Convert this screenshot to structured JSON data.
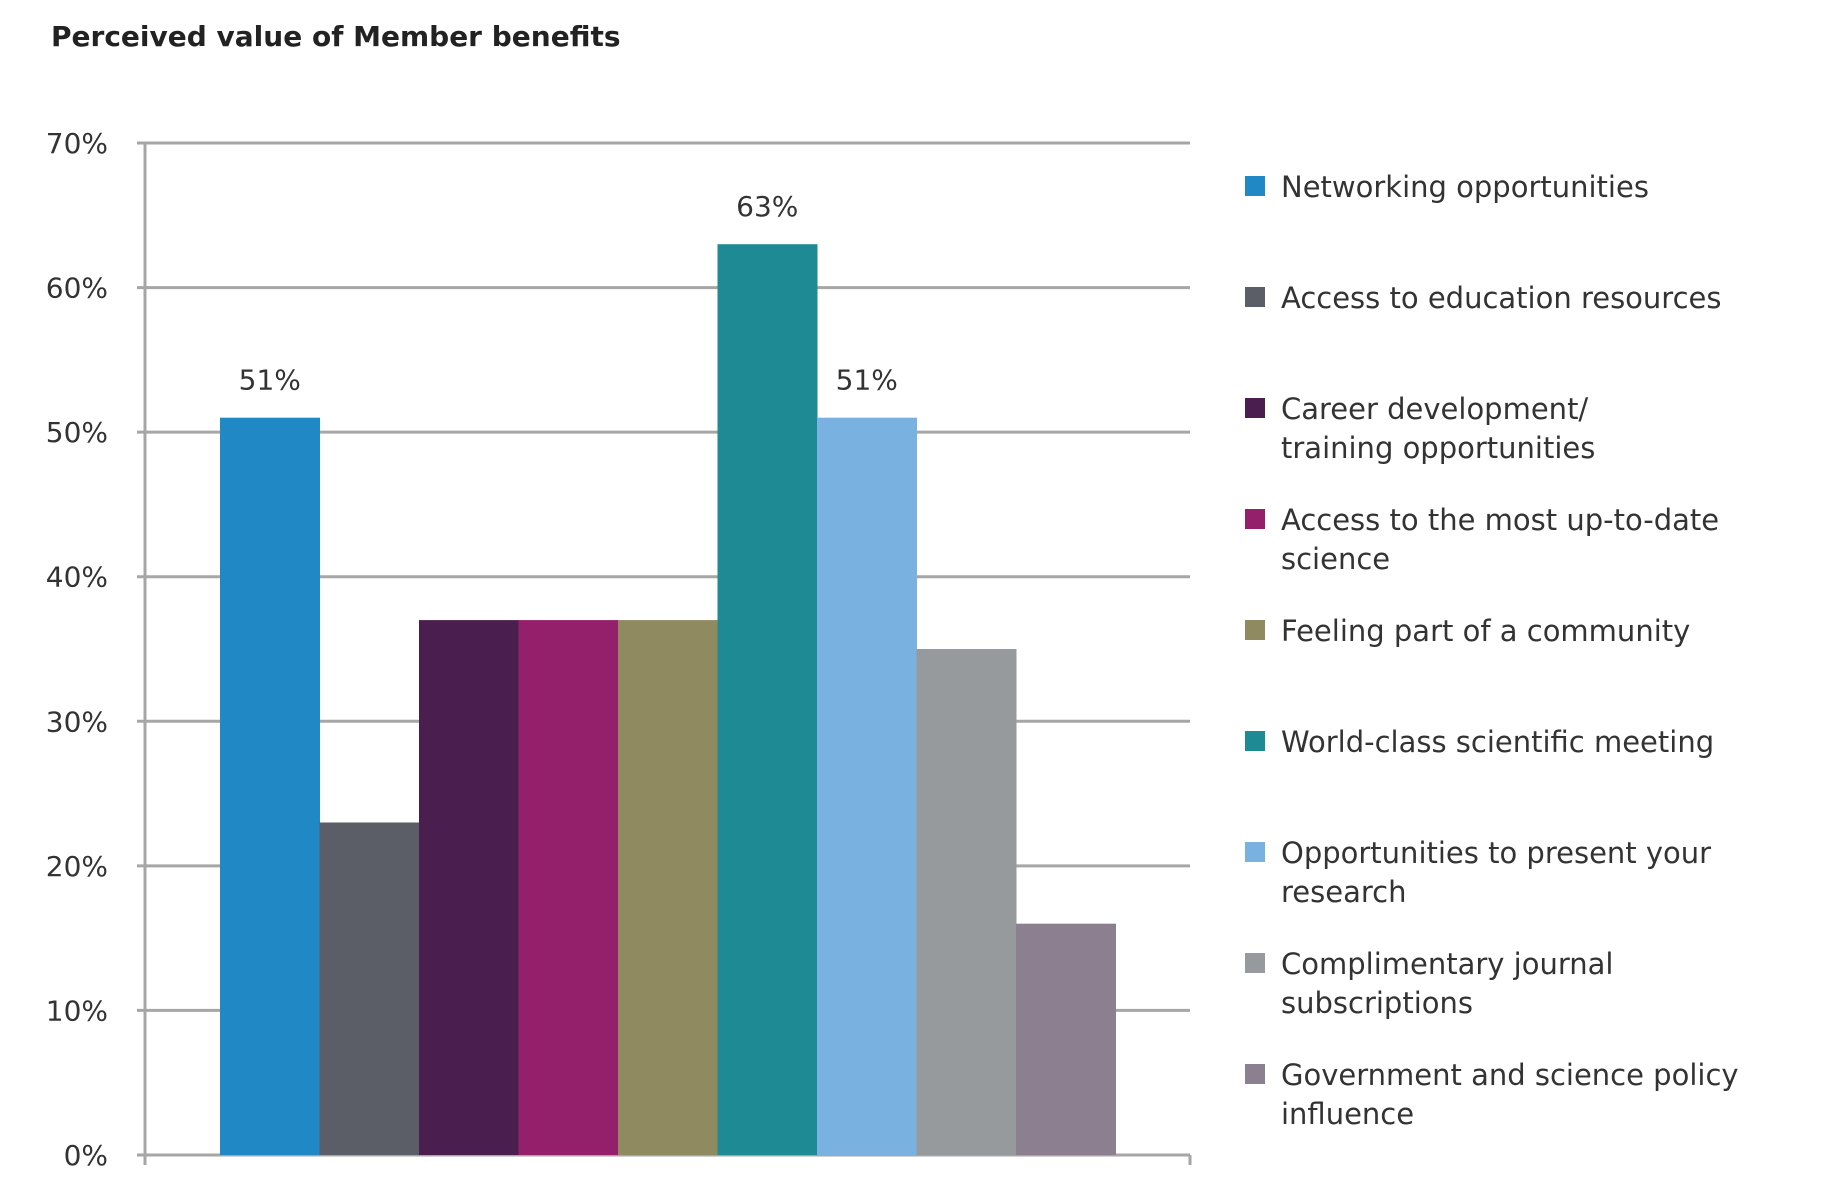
{
  "chart_data": {
    "type": "bar",
    "title": "Perceived value of Member benefits",
    "xlabel": "",
    "ylabel": "",
    "ylim": [
      0,
      70
    ],
    "y_ticks": [
      "0%",
      "10%",
      "20%",
      "30%",
      "40%",
      "50%",
      "60%",
      "70%"
    ],
    "grid": true,
    "legend_position": "right",
    "categories": [
      "Networking opportunities",
      "Access to education resources",
      "Career development/\ntraining opportunities",
      "Access to the most up-to-date science",
      "Feeling part of a community",
      "World-class scientific meeting",
      "Opportunities to present your research",
      "Complimentary journal\nsubscriptions",
      "Government and science policy\ninfluence"
    ],
    "values": [
      51,
      23,
      37,
      37,
      37,
      63,
      51,
      35,
      16
    ],
    "colors": [
      "#1f88c5",
      "#5b5e66",
      "#4a1f50",
      "#941f6a",
      "#908a60",
      "#1e8a93",
      "#79b2e0",
      "#979a9c",
      "#8c7f8f"
    ],
    "data_labels": [
      {
        "index": 0,
        "text": "51%"
      },
      {
        "index": 5,
        "text": "63%"
      },
      {
        "index": 6,
        "text": "51%"
      }
    ]
  }
}
